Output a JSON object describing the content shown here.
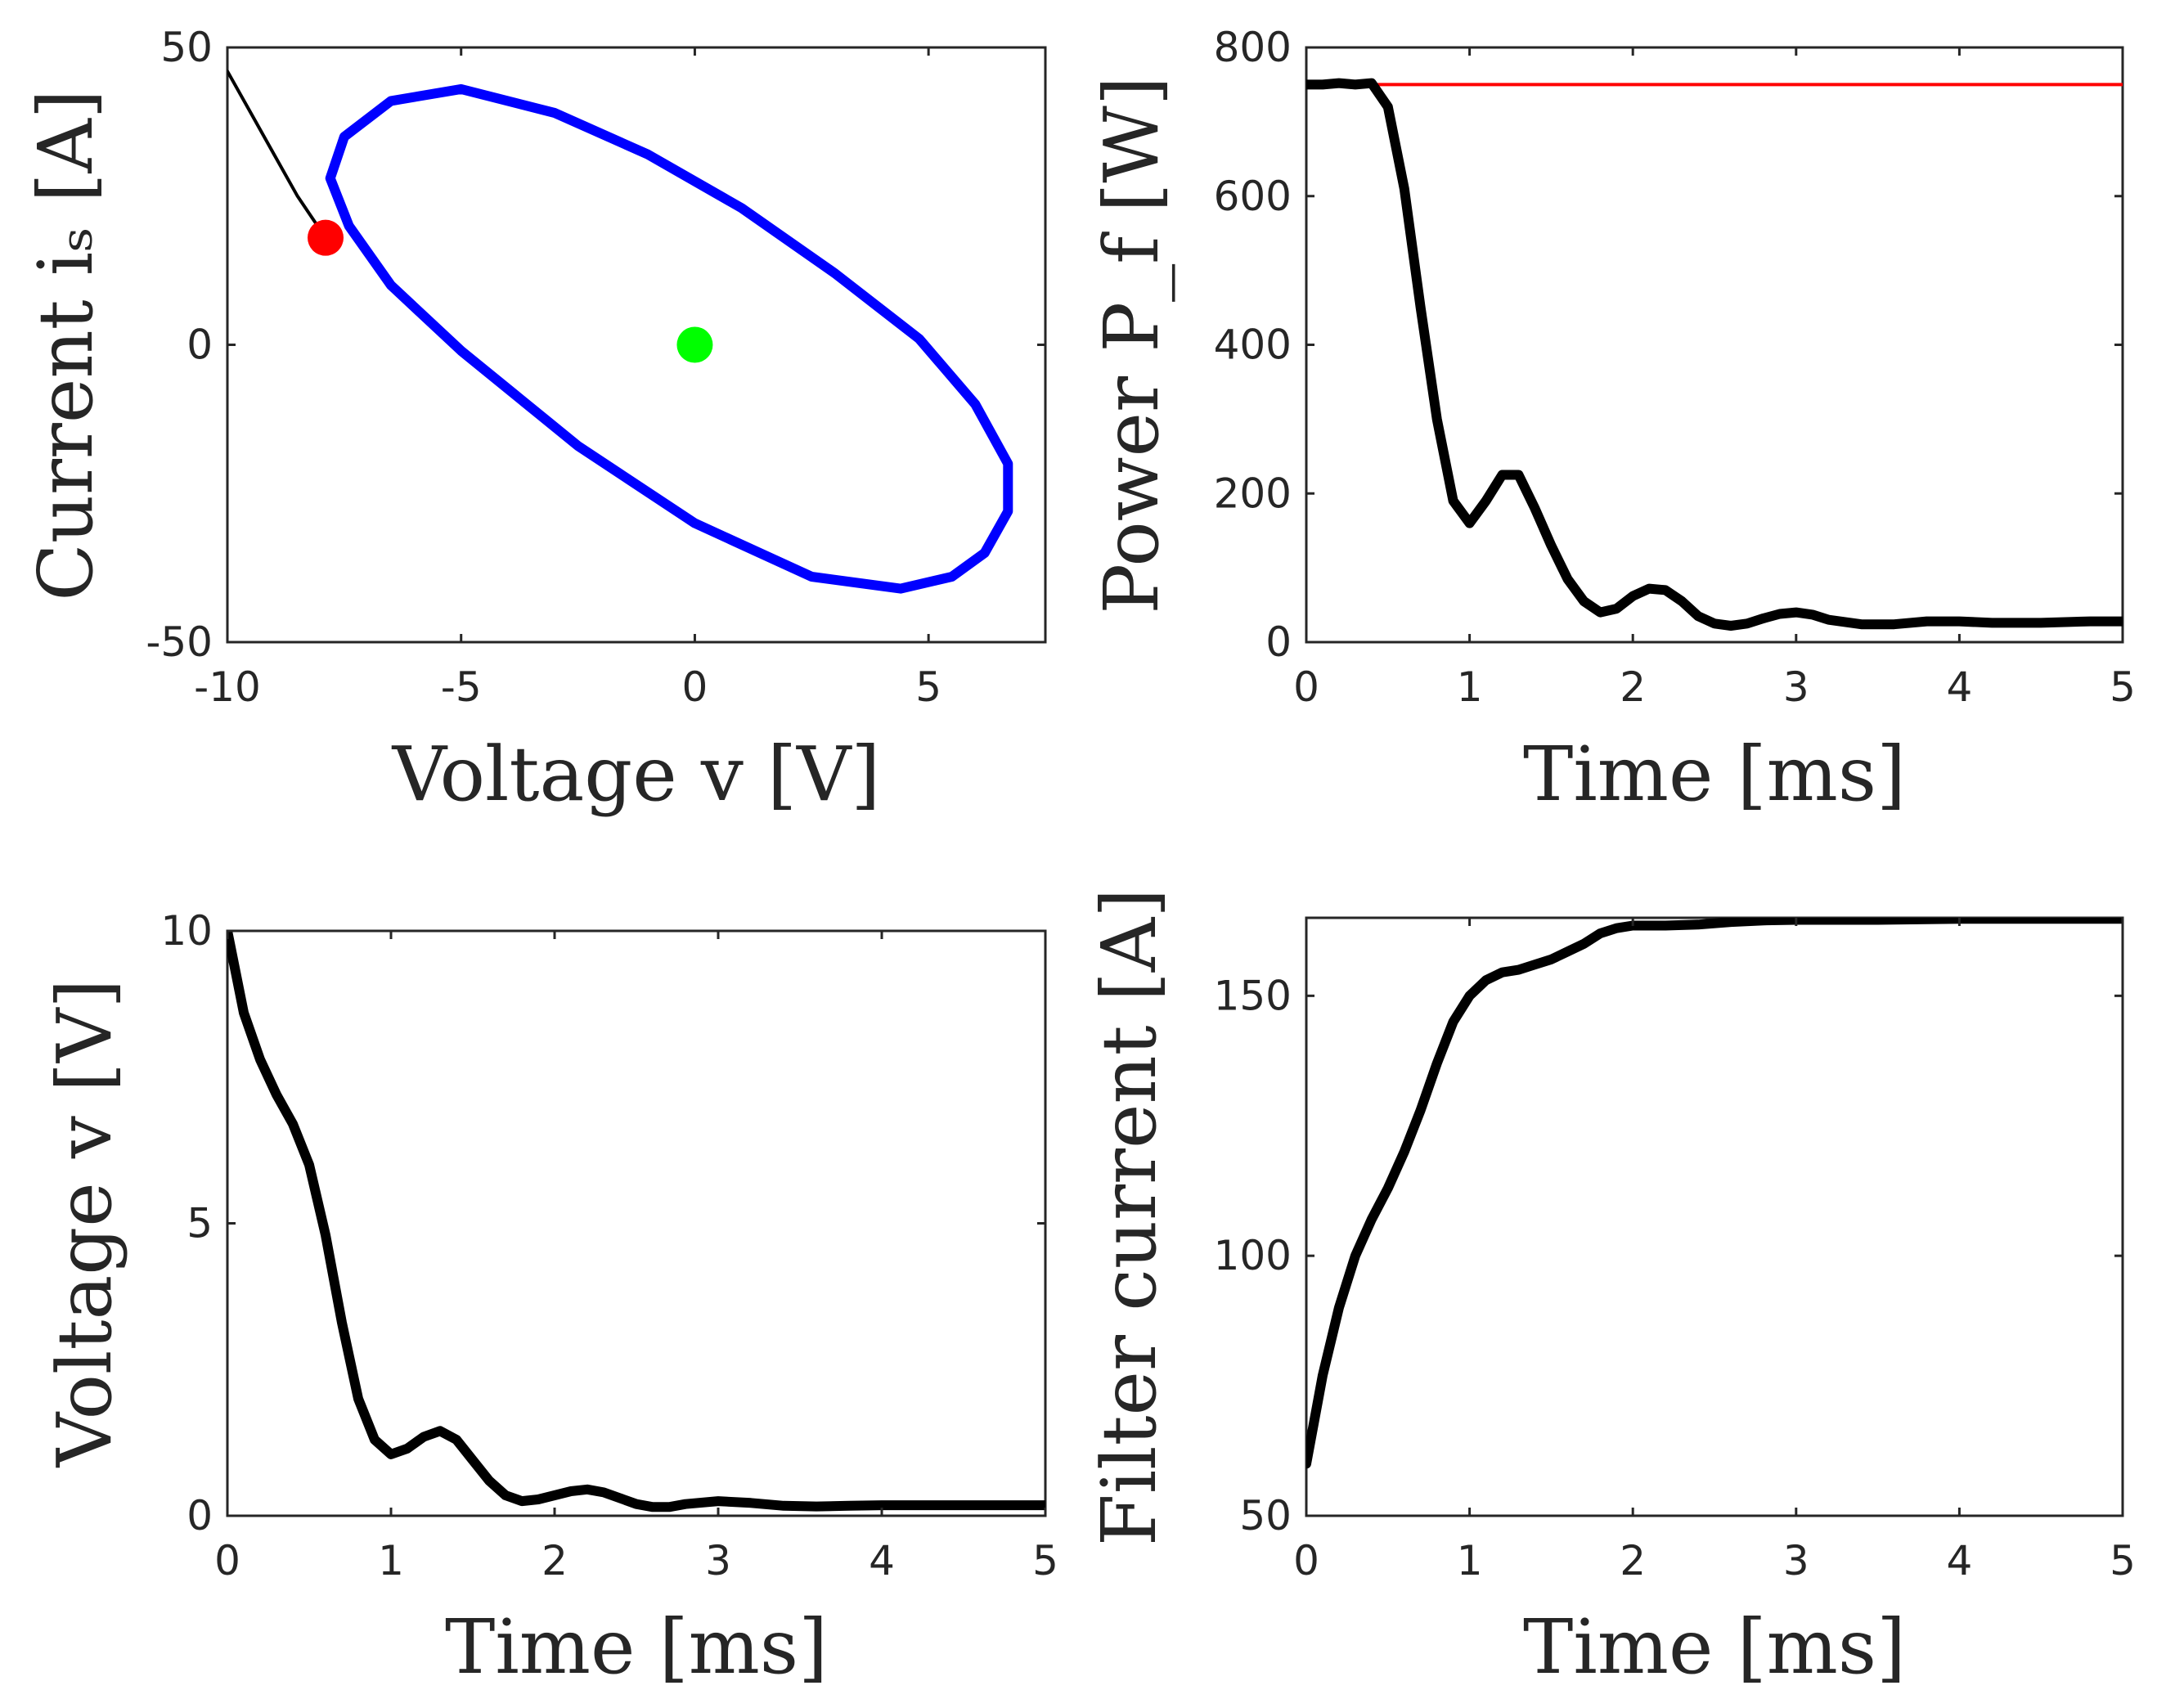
{
  "chart_data": [
    {
      "id": "tl",
      "type": "line",
      "xlabel": "Voltage v [V]",
      "ylabel": "Current iₛ [A]",
      "xlim": [
        -10,
        7.5
      ],
      "ylim": [
        -50,
        50
      ],
      "xticks": [
        -10,
        -5,
        0,
        5
      ],
      "yticks": [
        -50,
        0,
        50
      ],
      "series": [
        {
          "name": "limit ellipse",
          "color": "#0000ff",
          "width": "thick",
          "closed": true,
          "x": [
            -7.8,
            -7.5,
            -6.5,
            -5.0,
            -3.0,
            -1.0,
            1.0,
            3.0,
            4.8,
            6.0,
            6.7,
            6.7,
            6.2,
            5.5,
            4.4,
            2.5,
            0.0,
            -2.5,
            -5.0,
            -6.5,
            -7.4,
            -7.8
          ],
          "y": [
            28.0,
            35.0,
            41.0,
            43.0,
            39.0,
            32.0,
            23.0,
            12.0,
            1.0,
            -10.0,
            -20.0,
            -28.0,
            -35.0,
            -39.0,
            -41.0,
            -39.0,
            -30.0,
            -17.0,
            -1.0,
            10.0,
            20.0,
            28.0
          ]
        },
        {
          "name": "trajectory",
          "color": "#000000",
          "width": "thin",
          "closed": false,
          "x": [
            -10.0,
            -9.5,
            -9.0,
            -8.5,
            -7.9
          ],
          "y": [
            46.0,
            39.0,
            32.0,
            25.0,
            18.0
          ]
        }
      ],
      "points": [
        {
          "name": "current state",
          "x": -7.9,
          "y": 18.0,
          "color": "#ff0000"
        },
        {
          "name": "origin",
          "x": 0.0,
          "y": 0.0,
          "color": "#00ff00"
        }
      ]
    },
    {
      "id": "tr",
      "type": "line",
      "xlabel": "Time [ms]",
      "ylabel": "Power P_f [W]",
      "xlim": [
        0,
        5
      ],
      "ylim": [
        0,
        800
      ],
      "xticks": [
        0,
        1,
        2,
        3,
        4,
        5
      ],
      "yticks": [
        0,
        200,
        400,
        600,
        800
      ],
      "series": [
        {
          "name": "reference",
          "color": "#ff0000",
          "width": "thin",
          "x": [
            0,
            5
          ],
          "y": [
            750,
            750
          ]
        },
        {
          "name": "power",
          "color": "#000000",
          "width": "thick",
          "x": [
            0.0,
            0.1,
            0.2,
            0.3,
            0.4,
            0.5,
            0.6,
            0.7,
            0.8,
            0.9,
            1.0,
            1.1,
            1.2,
            1.3,
            1.4,
            1.5,
            1.6,
            1.7,
            1.8,
            1.9,
            2.0,
            2.1,
            2.2,
            2.3,
            2.4,
            2.5,
            2.6,
            2.7,
            2.8,
            2.9,
            3.0,
            3.1,
            3.2,
            3.4,
            3.6,
            3.8,
            4.0,
            4.2,
            4.5,
            4.8,
            5.0
          ],
          "y": [
            750,
            750,
            752,
            750,
            752,
            720,
            610,
            450,
            300,
            190,
            160,
            190,
            225,
            225,
            180,
            130,
            85,
            55,
            40,
            45,
            62,
            72,
            70,
            55,
            35,
            25,
            22,
            25,
            32,
            38,
            40,
            37,
            30,
            24,
            24,
            28,
            28,
            26,
            26,
            28,
            28
          ]
        }
      ]
    },
    {
      "id": "bl",
      "type": "line",
      "xlabel": "Time [ms]",
      "ylabel": "Voltage v [V]",
      "xlim": [
        0,
        5
      ],
      "ylim": [
        0,
        10
      ],
      "xticks": [
        0,
        1,
        2,
        3,
        4,
        5
      ],
      "yticks": [
        0,
        5,
        10
      ],
      "series": [
        {
          "name": "voltage",
          "color": "#000000",
          "width": "thick",
          "x": [
            0.0,
            0.1,
            0.2,
            0.3,
            0.4,
            0.5,
            0.6,
            0.7,
            0.8,
            0.9,
            1.0,
            1.1,
            1.2,
            1.3,
            1.4,
            1.5,
            1.6,
            1.7,
            1.8,
            1.9,
            2.0,
            2.1,
            2.2,
            2.3,
            2.4,
            2.5,
            2.6,
            2.7,
            2.8,
            3.0,
            3.2,
            3.4,
            3.6,
            3.8,
            4.0,
            4.5,
            5.0
          ],
          "y": [
            10.0,
            8.6,
            7.8,
            7.2,
            6.7,
            6.0,
            4.8,
            3.3,
            2.0,
            1.3,
            1.05,
            1.15,
            1.35,
            1.45,
            1.3,
            0.95,
            0.6,
            0.35,
            0.25,
            0.28,
            0.35,
            0.42,
            0.45,
            0.4,
            0.3,
            0.2,
            0.15,
            0.15,
            0.2,
            0.25,
            0.22,
            0.17,
            0.16,
            0.17,
            0.18,
            0.18,
            0.18
          ]
        }
      ]
    },
    {
      "id": "br",
      "type": "line",
      "xlabel": "Time [ms]",
      "ylabel": "Filter current [A]",
      "xlim": [
        0,
        5
      ],
      "ylim": [
        50,
        165
      ],
      "xticks": [
        0,
        1,
        2,
        3,
        4,
        5
      ],
      "yticks": [
        50,
        100,
        150
      ],
      "series": [
        {
          "name": "filter current",
          "color": "#000000",
          "width": "thick",
          "x": [
            0.0,
            0.1,
            0.2,
            0.3,
            0.4,
            0.5,
            0.6,
            0.7,
            0.8,
            0.9,
            1.0,
            1.1,
            1.2,
            1.3,
            1.4,
            1.5,
            1.6,
            1.7,
            1.8,
            1.9,
            2.0,
            2.2,
            2.4,
            2.6,
            2.8,
            3.0,
            3.5,
            4.0,
            4.5,
            5.0
          ],
          "y": [
            60,
            77,
            90,
            100,
            107,
            113,
            120,
            128,
            137,
            145,
            150,
            153,
            154.5,
            155,
            156,
            157,
            158.5,
            160,
            162,
            163,
            163.5,
            163.5,
            163.7,
            164.2,
            164.5,
            164.6,
            164.6,
            164.8,
            164.8,
            164.8
          ]
        }
      ]
    }
  ]
}
